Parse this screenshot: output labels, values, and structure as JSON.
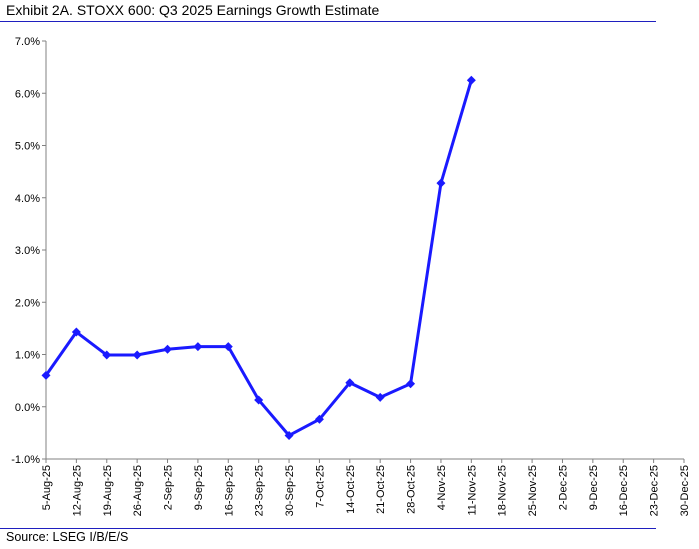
{
  "title": "Exhibit 2A.  STOXX 600: Q3 2025 Earnings Growth Estimate",
  "source": "Source: LSEG I/B/E/S",
  "chart_data": {
    "type": "line",
    "title": "Exhibit 2A.  STOXX 600: Q3 2025 Earnings Growth Estimate",
    "xlabel": "",
    "ylabel": "",
    "categories": [
      "5-Aug-25",
      "12-Aug-25",
      "19-Aug-25",
      "26-Aug-25",
      "2-Sep-25",
      "9-Sep-25",
      "16-Sep-25",
      "23-Sep-25",
      "30-Sep-25",
      "7-Oct-25",
      "14-Oct-25",
      "21-Oct-25",
      "28-Oct-25",
      "4-Nov-25",
      "11-Nov-25",
      "18-Nov-25",
      "25-Nov-25",
      "2-Dec-25",
      "9-Dec-25",
      "16-Dec-25",
      "23-Dec-25",
      "30-Dec-25"
    ],
    "yticks": [
      "7.0%",
      "6.0%",
      "5.0%",
      "4.0%",
      "3.0%",
      "2.0%",
      "1.0%",
      "0.0%",
      "-1.0%"
    ],
    "ylim": [
      -1.0,
      7.0
    ],
    "series": [
      {
        "values": [
          0.6,
          1.43,
          0.99,
          0.99,
          1.1,
          1.15,
          1.15,
          0.13,
          -0.55,
          -0.24,
          0.46,
          0.18,
          0.44,
          4.28,
          6.25,
          null,
          null,
          null,
          null,
          null,
          null,
          null
        ]
      }
    ],
    "line_color": "#1a1aff",
    "grid": false,
    "legend": "none"
  }
}
